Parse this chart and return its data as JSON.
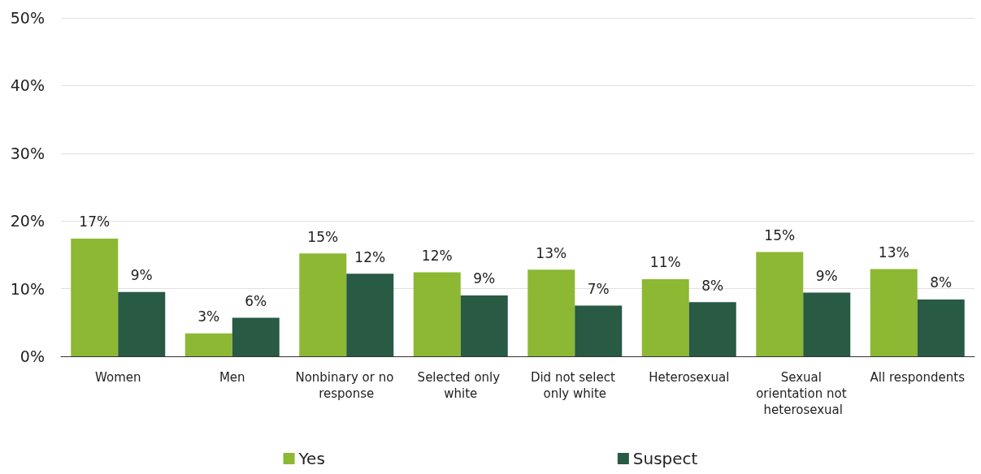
{
  "chart_data": {
    "type": "bar",
    "categories": [
      "Women",
      "Men",
      "Nonbinary or no response",
      "Selected only white",
      "Did not select only white",
      "Heterosexual",
      "Sexual orientation not heterosexual",
      "All respondents"
    ],
    "series": [
      {
        "name": "Yes",
        "color": "#8db833",
        "values": [
          17.4,
          3.4,
          15.2,
          12.4,
          12.8,
          11.4,
          15.4,
          12.9
        ],
        "value_labels": [
          "17%",
          "3%",
          "15%",
          "12%",
          "13%",
          "11%",
          "15%",
          "13%"
        ]
      },
      {
        "name": "Suspect",
        "color": "#285a44",
        "values": [
          9.5,
          5.7,
          12.2,
          9.0,
          7.5,
          8.0,
          9.4,
          8.4
        ],
        "value_labels": [
          "9%",
          "6%",
          "12%",
          "9%",
          "7%",
          "8%",
          "9%",
          "8%"
        ]
      }
    ],
    "ylim": [
      0,
      50
    ],
    "yticks": [
      {
        "value": 0,
        "label": "0%"
      },
      {
        "value": 10,
        "label": "10%"
      },
      {
        "value": 20,
        "label": "20%"
      },
      {
        "value": 30,
        "label": "30%"
      },
      {
        "value": 40,
        "label": "40%"
      },
      {
        "value": 50,
        "label": "50%"
      }
    ],
    "grid": "y",
    "legend": "bottom"
  }
}
